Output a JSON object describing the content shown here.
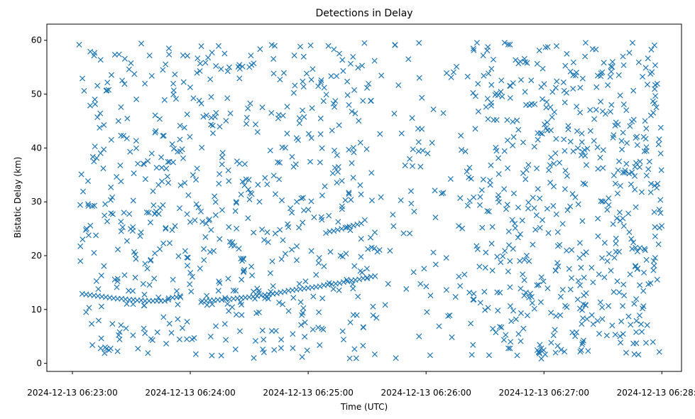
{
  "chart_data": {
    "type": "scatter",
    "title": "Detections in Delay",
    "xlabel": "Time (UTC)",
    "ylabel": "Bistatic Delay (km)",
    "marker": "x",
    "color": "#1f77b4",
    "grid": false,
    "legend": "none",
    "xlim": [
      "2024-12-13 06:22:47",
      "2024-12-13 06:28:10"
    ],
    "ylim": [
      -1.5,
      63
    ],
    "xticks": [
      "2024-12-13 06:23:00",
      "2024-12-13 06:24:00",
      "2024-12-13 06:25:00",
      "2024-12-13 06:26:00",
      "2024-12-13 06:27:00",
      "2024-12-13 06:28:00"
    ],
    "yticks": [
      0,
      10,
      20,
      30,
      40,
      50,
      60
    ],
    "series": [
      {
        "name": "",
        "x_unit": "UTC time 2024-12-13 (HH:MM:SS)",
        "track_points": [
          [
            "06:23:05",
            12.9
          ],
          [
            "06:23:07",
            12.8
          ],
          [
            "06:23:09",
            12.7
          ],
          [
            "06:23:11",
            12.6
          ],
          [
            "06:23:13",
            12.5
          ],
          [
            "06:23:15",
            12.4
          ],
          [
            "06:23:17",
            12.3
          ],
          [
            "06:23:19",
            12.2
          ],
          [
            "06:23:21",
            12.1
          ],
          [
            "06:23:23",
            12.0
          ],
          [
            "06:23:25",
            12.0
          ],
          [
            "06:23:27",
            11.9
          ],
          [
            "06:23:29",
            11.8
          ],
          [
            "06:23:31",
            11.8
          ],
          [
            "06:23:33",
            11.7
          ],
          [
            "06:23:35",
            11.7
          ],
          [
            "06:23:37",
            11.6
          ],
          [
            "06:23:39",
            11.6
          ],
          [
            "06:23:41",
            11.6
          ],
          [
            "06:23:43",
            11.6
          ],
          [
            "06:23:45",
            11.6
          ],
          [
            "06:23:47",
            11.6
          ],
          [
            "06:23:49",
            12.1
          ],
          [
            "06:23:51",
            12.2
          ],
          [
            "06:23:53",
            12.3
          ],
          [
            "06:23:55",
            12.3
          ],
          [
            "06:24:06",
            11.6
          ],
          [
            "06:24:08",
            11.6
          ],
          [
            "06:24:10",
            11.7
          ],
          [
            "06:24:12",
            11.7
          ],
          [
            "06:24:14",
            11.8
          ],
          [
            "06:24:16",
            11.8
          ],
          [
            "06:24:18",
            11.9
          ],
          [
            "06:24:20",
            11.9
          ],
          [
            "06:24:22",
            12.0
          ],
          [
            "06:24:24",
            12.1
          ],
          [
            "06:24:26",
            12.2
          ],
          [
            "06:24:28",
            12.2
          ],
          [
            "06:24:30",
            12.3
          ],
          [
            "06:24:32",
            12.4
          ],
          [
            "06:24:34",
            12.5
          ],
          [
            "06:24:36",
            12.6
          ],
          [
            "06:24:38",
            12.7
          ],
          [
            "06:24:40",
            12.8
          ],
          [
            "06:24:42",
            12.9
          ],
          [
            "06:24:44",
            13.0
          ],
          [
            "06:24:46",
            13.2
          ],
          [
            "06:24:48",
            13.3
          ],
          [
            "06:24:50",
            13.5
          ],
          [
            "06:24:52",
            13.6
          ],
          [
            "06:24:54",
            13.7
          ],
          [
            "06:24:56",
            13.8
          ],
          [
            "06:24:58",
            13.9
          ],
          [
            "06:25:00",
            14.0
          ],
          [
            "06:25:02",
            14.1
          ],
          [
            "06:25:04",
            14.2
          ],
          [
            "06:25:06",
            14.3
          ],
          [
            "06:25:08",
            14.5
          ],
          [
            "06:25:10",
            14.6
          ],
          [
            "06:25:12",
            14.7
          ],
          [
            "06:25:14",
            14.8
          ],
          [
            "06:25:16",
            14.9
          ],
          [
            "06:25:18",
            15.1
          ],
          [
            "06:25:20",
            15.2
          ],
          [
            "06:25:22",
            15.4
          ],
          [
            "06:25:24",
            15.5
          ],
          [
            "06:25:26",
            15.6
          ],
          [
            "06:25:28",
            15.8
          ],
          [
            "06:25:30",
            15.9
          ],
          [
            "06:25:32",
            16.1
          ],
          [
            "06:25:34",
            16.2
          ],
          [
            "06:25:09",
            24.2
          ],
          [
            "06:25:11",
            24.5
          ],
          [
            "06:25:13",
            24.6
          ],
          [
            "06:25:15",
            24.8
          ],
          [
            "06:25:17",
            25.0
          ],
          [
            "06:25:19",
            25.2
          ],
          [
            "06:25:21",
            25.4
          ],
          [
            "06:25:23",
            25.6
          ],
          [
            "06:25:25",
            25.8
          ],
          [
            "06:25:27",
            26.0
          ]
        ]
      }
    ]
  }
}
